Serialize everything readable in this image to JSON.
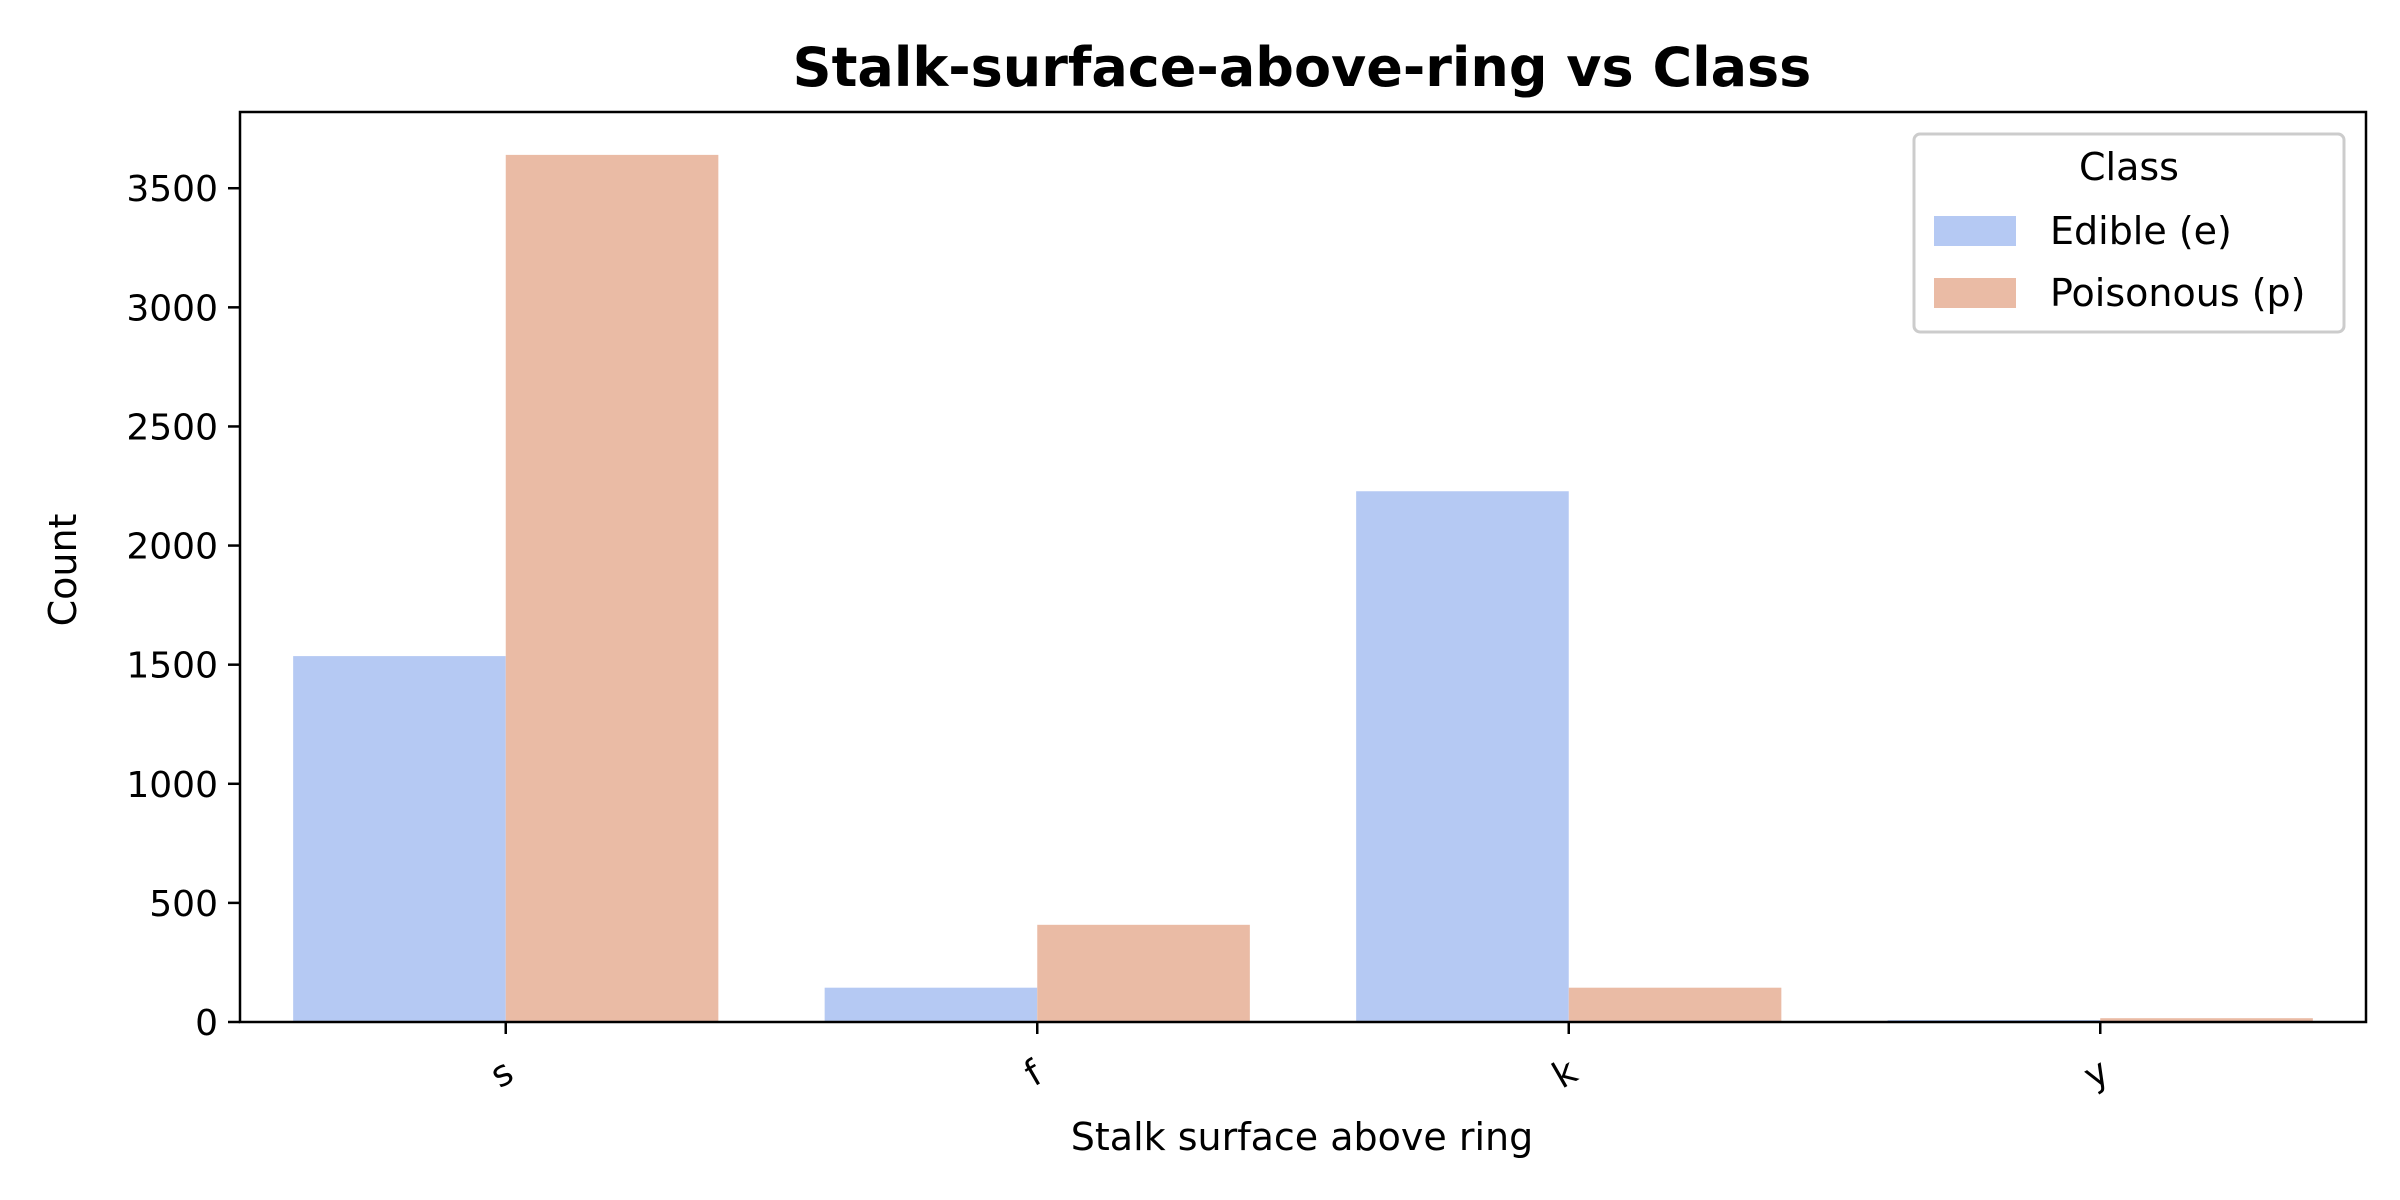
{
  "chart_data": {
    "type": "bar",
    "title": "Stalk-surface-above-ring vs Class",
    "xlabel": "Stalk surface above ring",
    "ylabel": "Count",
    "categories": [
      "s",
      "f",
      "k",
      "y"
    ],
    "series": [
      {
        "name": "Edible (e)",
        "color": "#b5c9f3",
        "values": [
          1536,
          144,
          2228,
          8
        ]
      },
      {
        "name": "Poisonous (p)",
        "color": "#eabba5",
        "values": [
          3640,
          408,
          144,
          16
        ]
      }
    ],
    "ylim": [
      0,
      3820
    ],
    "yticks": [
      0,
      500,
      1000,
      1500,
      2000,
      2500,
      3000,
      3500
    ],
    "grid": false,
    "legend": {
      "title": "Class",
      "position": "top-right"
    }
  }
}
